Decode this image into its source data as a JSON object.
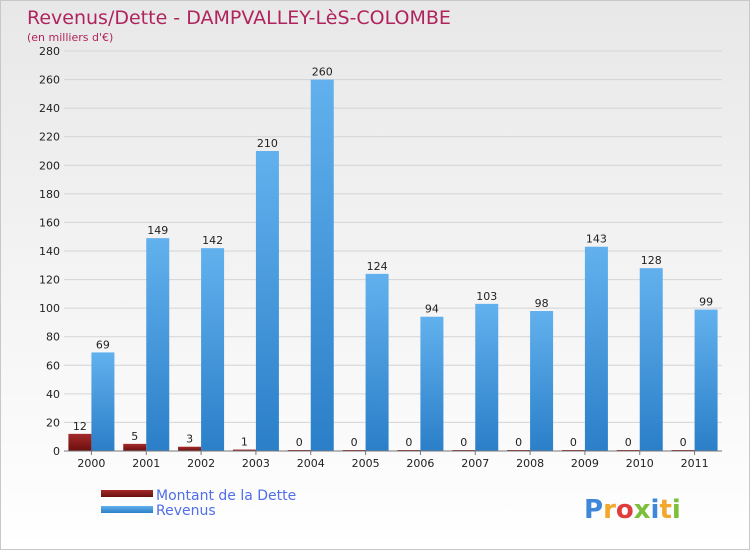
{
  "chart_data": {
    "type": "bar",
    "title": "Revenus/Dette - DAMPVALLEY-LèS-COLOMBE",
    "subtitle": "(en milliers d'€)",
    "categories": [
      "2000",
      "2001",
      "2002",
      "2003",
      "2004",
      "2005",
      "2006",
      "2007",
      "2008",
      "2009",
      "2010",
      "2011"
    ],
    "series": [
      {
        "name": "Montant de la Dette",
        "color": "#8b1a1a",
        "values": [
          12,
          5,
          3,
          1,
          0,
          0,
          0,
          0,
          0,
          0,
          0,
          0
        ]
      },
      {
        "name": "Revenus",
        "color": "#3e93d8",
        "values": [
          69,
          149,
          142,
          210,
          260,
          124,
          94,
          103,
          98,
          143,
          128,
          99
        ]
      }
    ],
    "ylim": [
      0,
      280
    ],
    "yticks": [
      0,
      20,
      40,
      60,
      80,
      100,
      120,
      140,
      160,
      180,
      200,
      220,
      240,
      260,
      280
    ],
    "grid": true,
    "legend_position": "bottom-left"
  },
  "logo": {
    "letters": [
      "P",
      "r",
      "o",
      "x",
      "i",
      "t",
      "i"
    ],
    "colors": [
      "#3f87d9",
      "#f2a72f",
      "#e03c3c",
      "#7bbf3a",
      "#3f87d9",
      "#f2a72f",
      "#7bbf3a"
    ]
  }
}
